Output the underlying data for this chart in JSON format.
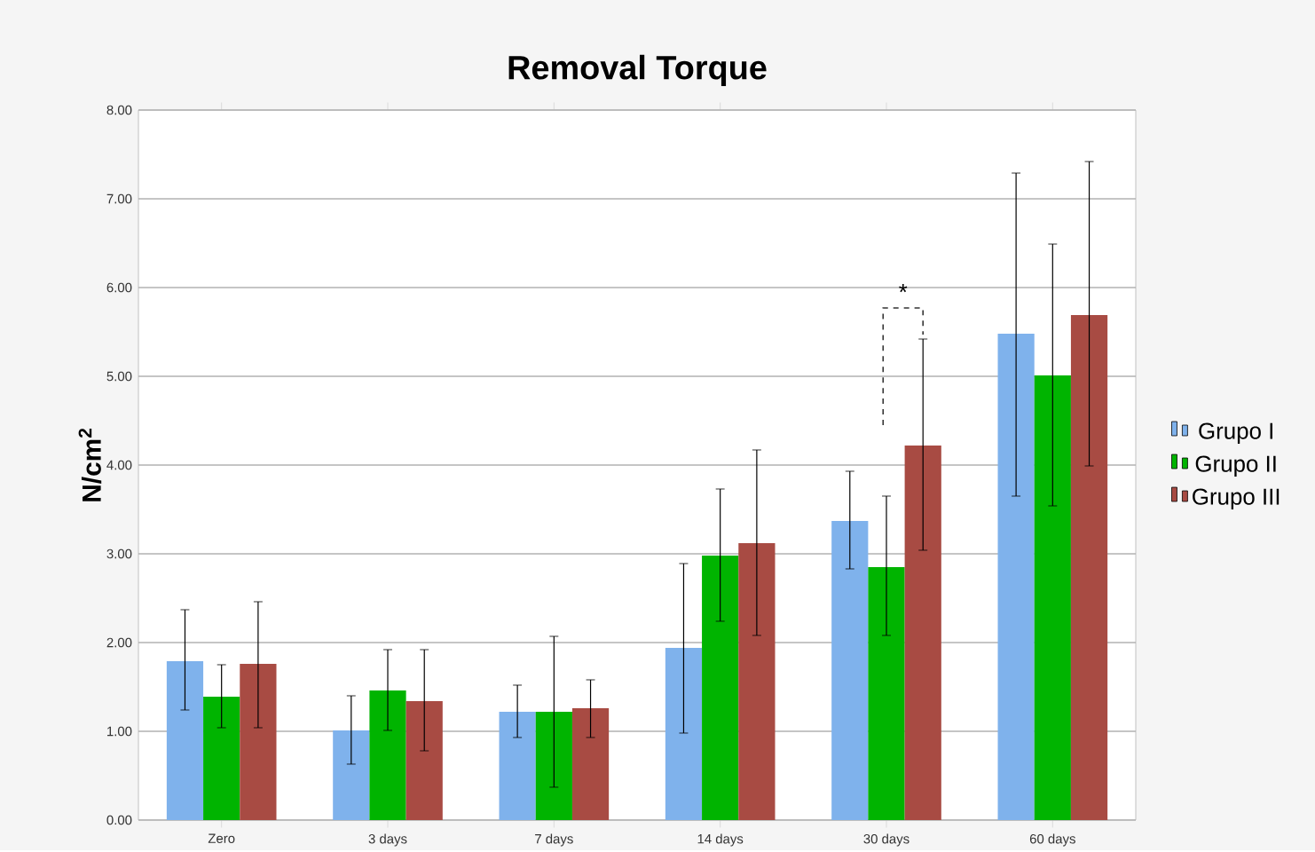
{
  "chart_data": {
    "type": "bar",
    "title": "Removal Torque",
    "ylabel": "N/cm$^{2}$",
    "categories": [
      "Zero",
      "3 days",
      "7 days",
      "14 days",
      "30 days",
      "60 days"
    ],
    "series": [
      {
        "name": "Grupo I",
        "color": "#7fb2ec",
        "values": [
          1.79,
          1.01,
          1.22,
          1.94,
          3.37,
          5.48
        ],
        "errors": [
          [
            1.24,
            2.37
          ],
          [
            0.63,
            1.4
          ],
          [
            0.93,
            1.52
          ],
          [
            0.98,
            2.89
          ],
          [
            2.83,
            3.93
          ],
          [
            3.65,
            7.29
          ]
        ]
      },
      {
        "name": "Grupo II",
        "color": "#00b400",
        "values": [
          1.39,
          1.46,
          1.22,
          2.98,
          2.85,
          5.01
        ],
        "errors": [
          [
            1.04,
            1.75
          ],
          [
            1.01,
            1.92
          ],
          [
            0.37,
            2.07
          ],
          [
            2.24,
            3.73
          ],
          [
            2.08,
            3.65
          ],
          [
            3.54,
            6.49
          ]
        ]
      },
      {
        "name": "Grupo III",
        "color": "#a84b43",
        "values": [
          1.76,
          1.34,
          1.26,
          3.12,
          4.22,
          5.69
        ],
        "errors": [
          [
            1.04,
            2.46
          ],
          [
            0.78,
            1.92
          ],
          [
            0.93,
            1.58
          ],
          [
            2.08,
            4.17
          ],
          [
            3.04,
            5.42
          ],
          [
            3.99,
            7.42
          ]
        ]
      }
    ],
    "ylim": [
      0,
      8
    ],
    "yticks": [
      {
        "value": 0,
        "label": "0.00"
      },
      {
        "value": 1,
        "label": "1.00"
      },
      {
        "value": 2,
        "label": "2.00"
      },
      {
        "value": 3,
        "label": "3.00"
      },
      {
        "value": 4,
        "label": "4.00"
      },
      {
        "value": 5,
        "label": "5.00"
      },
      {
        "value": 6,
        "label": "6.00"
      },
      {
        "value": 7,
        "label": "7.00"
      },
      {
        "value": 8,
        "label": "8.00"
      }
    ],
    "grid": "y",
    "legend": "right",
    "annotations": [
      "*"
    ]
  }
}
